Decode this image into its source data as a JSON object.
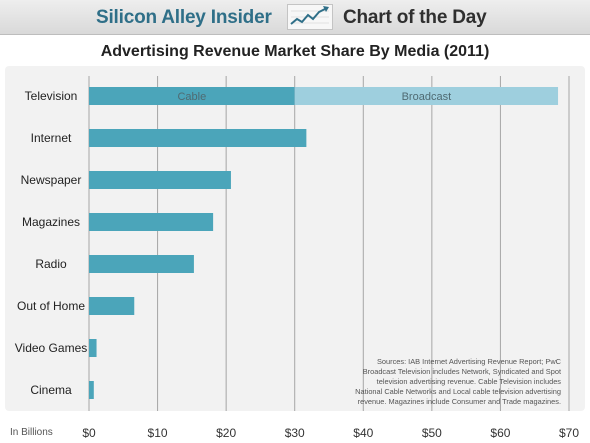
{
  "header": {
    "brand": "Silicon Alley Insider",
    "section": "Chart of the Day",
    "logo_icon": "rising-line-chart-icon"
  },
  "colors": {
    "bar": "#4ba5ba",
    "broadcast": "#9ecfde",
    "brand": "#2f6f88",
    "grid": "#a6a6a6",
    "panel": "#f2f2f2"
  },
  "chart_data": {
    "type": "bar",
    "orientation": "horizontal",
    "title": "Advertising Revenue Market Share By Media (2011)",
    "xlabel": "In Billions",
    "xlim": [
      0,
      70
    ],
    "x_ticks": [
      "$0",
      "$10",
      "$20",
      "$30",
      "$40",
      "$50",
      "$60",
      "$70"
    ],
    "grid": true,
    "categories": [
      "Television",
      "Internet",
      "Newspaper",
      "Magazines",
      "Radio",
      "Out of Home",
      "Video Games",
      "Cinema"
    ],
    "values": [
      68.4,
      31.7,
      20.7,
      18.1,
      15.3,
      6.6,
      1.1,
      0.7
    ],
    "television_split": [
      {
        "name": "Cable",
        "value": 30.0
      },
      {
        "name": "Broadcast",
        "value": 38.4
      }
    ],
    "sources_note": "Sources: IAB Internet Advertising Revenue Report; PwC Broadcast Television includes Network, Syndicated and Spot television advertising revenue. Cable Television includes National Cable Networks and Local cable television advertising revenue. Magazines include Consumer and Trade magazines."
  }
}
